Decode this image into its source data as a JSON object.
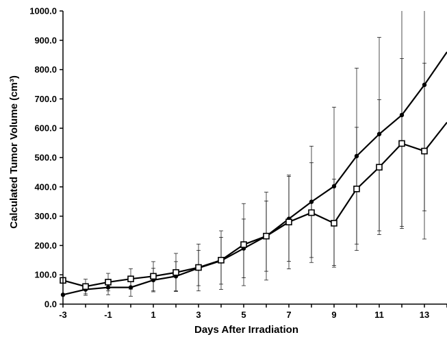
{
  "chart_data": {
    "type": "line",
    "title": "",
    "xlabel": "Days After Irradiation",
    "ylabel": "Calculated Tumor Volume (cm³)",
    "xlim": [
      -3,
      14
    ],
    "ylim": [
      0,
      1000
    ],
    "xticks": [
      -3,
      -1,
      1,
      3,
      5,
      7,
      9,
      11,
      13
    ],
    "yticks": [
      0,
      100,
      200,
      300,
      400,
      500,
      600,
      700,
      800,
      900,
      1000
    ],
    "ytick_labels": [
      "0.0",
      "100.0",
      "200.0",
      "300.0",
      "400.0",
      "500.0",
      "600.0",
      "700.0",
      "800.0",
      "900.0",
      "1000.0"
    ],
    "grid": false,
    "series": [
      {
        "marker": "filled-circle",
        "x": [
          -3,
          -2,
          -1,
          0,
          1,
          2,
          3,
          4,
          5,
          6,
          7,
          8,
          9,
          10,
          11,
          12,
          13,
          14
        ],
        "y": [
          32,
          50,
          57,
          57,
          82,
          95,
          123,
          148,
          190,
          232,
          291,
          349,
          402,
          505,
          580,
          645,
          748,
          860
        ],
        "error": [
          null,
          20,
          25,
          30,
          40,
          50,
          60,
          80,
          100,
          120,
          145,
          190,
          270,
          300,
          330,
          380,
          430,
          null
        ]
      },
      {
        "marker": "open-square",
        "x": [
          -3,
          -2,
          -1,
          0,
          1,
          2,
          3,
          4,
          5,
          6,
          7,
          8,
          9,
          10,
          11,
          12,
          13,
          14
        ],
        "y": [
          81,
          60,
          75,
          86,
          95,
          108,
          125,
          150,
          203,
          232,
          280,
          312,
          276,
          393,
          467,
          548,
          522,
          620
        ],
        "error": [
          null,
          25,
          30,
          35,
          50,
          65,
          80,
          100,
          140,
          150,
          160,
          170,
          150,
          210,
          230,
          290,
          300,
          null
        ]
      }
    ],
    "colors": {
      "lines": "#000000",
      "background": "#ffffff"
    }
  }
}
